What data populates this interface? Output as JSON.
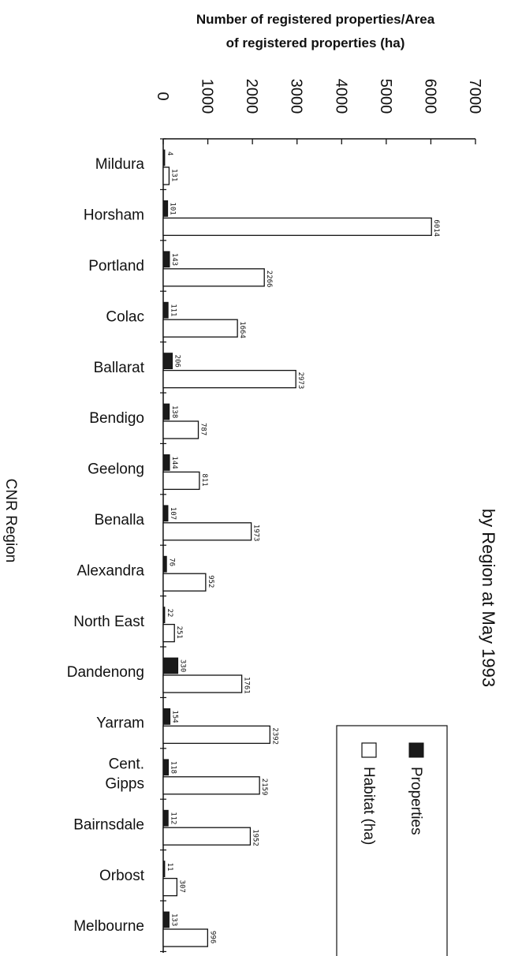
{
  "chart_data": {
    "type": "bar",
    "title": "by Region at May 1993",
    "xlabel": "CNR Region",
    "ylabel_lines": [
      "Number of registered properties/Area",
      "of registered properties (ha)"
    ],
    "ylim": [
      0,
      7000
    ],
    "yticks": [
      "0",
      "1000",
      "2000",
      "3000",
      "4000",
      "5000",
      "6000",
      "7000"
    ],
    "categories": [
      [
        "Mildura"
      ],
      [
        "Horsham"
      ],
      [
        "Portland"
      ],
      [
        "Colac"
      ],
      [
        "Ballarat"
      ],
      [
        "Bendigo"
      ],
      [
        "Geelong"
      ],
      [
        "Benalla"
      ],
      [
        "Alexandra"
      ],
      [
        "North East"
      ],
      [
        "Dandenong"
      ],
      [
        "Yarram"
      ],
      [
        "Cent.",
        "Gipps"
      ],
      [
        "Bairnsdale"
      ],
      [
        "Orbost"
      ],
      [
        "Melbourne"
      ]
    ],
    "series": [
      {
        "name": "Properties",
        "color": "#1a1a1a",
        "values": [
          4,
          101,
          143,
          111,
          206,
          138,
          144,
          107,
          76,
          22,
          330,
          154,
          118,
          112,
          11,
          133
        ],
        "labels": [
          "4",
          "101",
          "143",
          "111",
          "206",
          "138",
          "144",
          "107",
          "76",
          "22",
          "330",
          "154",
          "118",
          "112",
          "11",
          "133"
        ]
      },
      {
        "name": "Habitat (ha)",
        "color": "#ffffff",
        "values": [
          131,
          6014,
          2266,
          1664,
          2973,
          787,
          811,
          1973,
          952,
          251,
          1761,
          2392,
          2159,
          1952,
          307,
          996
        ],
        "labels": [
          "131",
          "6014",
          "2266",
          "1664",
          "2973",
          "787",
          "811",
          "1973",
          "952",
          "251",
          "1761",
          "2392",
          "2159",
          "1952",
          "307",
          "996"
        ]
      }
    ],
    "legend_position": "right",
    "grid": false
  }
}
